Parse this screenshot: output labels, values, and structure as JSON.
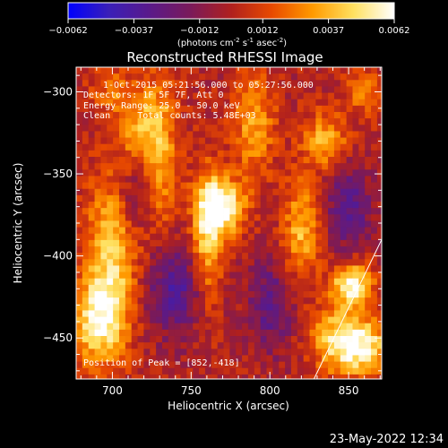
{
  "chart_data": {
    "type": "heatmap",
    "title": "Reconstructed RHESSI Image",
    "xlabel": "Heliocentric X (arcsec)",
    "ylabel": "Heliocentric Y (arcsec)",
    "xlim": [
      677,
      871
    ],
    "ylim": [
      -475,
      -285
    ],
    "xticks": [
      "700",
      "750",
      "800",
      "850"
    ],
    "yticks": [
      "-300",
      "-350",
      "-400",
      "-450"
    ],
    "colorbar": {
      "range": [
        -0.0062,
        0.0062
      ],
      "ticks": [
        "-0.0062",
        "-0.0037",
        "-0.0012",
        "0.0012",
        "0.0037",
        "0.0062"
      ],
      "label_main": "(photons cm",
      "label_sup1": "-2",
      "label_mid": " s",
      "label_sup2": "-1",
      "label_end": " asec",
      "label_sup3": "-2",
      "label_close": ")",
      "colors": [
        "#0000ff",
        "#3a1fb8",
        "#5a1a8a",
        "#7a1a5a",
        "#b0201e",
        "#e84a00",
        "#ff9a00",
        "#ffe060",
        "#ffffff"
      ]
    },
    "annotations": {
      "time": "1-Oct-2015 05:21:56.000 to 05:27:56.000",
      "detectors": "Detectors: 1F 5F 7F, Att 0",
      "energy": "Energy Range: 25.0 - 50.0 keV",
      "clean": "Clean     Total counts: 5.48E+03",
      "peak": "Position of Peak = [852,-418]"
    },
    "peak": [
      852,
      -418
    ],
    "limb_line": [
      [
        828,
        -475
      ],
      [
        871,
        -390
      ]
    ],
    "features": [
      {
        "x": 770,
        "y": -370,
        "peak": 1.0,
        "sx": 10,
        "sy": 12
      },
      {
        "x": 760,
        "y": -390,
        "peak": 0.7,
        "sx": 7,
        "sy": 30
      },
      {
        "x": 790,
        "y": -320,
        "peak": 0.55,
        "sx": 9,
        "sy": 22
      },
      {
        "x": 730,
        "y": -335,
        "peak": 0.6,
        "sx": 8,
        "sy": 35
      },
      {
        "x": 700,
        "y": -400,
        "peak": 0.7,
        "sx": 12,
        "sy": 35
      },
      {
        "x": 690,
        "y": -440,
        "peak": 0.75,
        "sx": 12,
        "sy": 18
      },
      {
        "x": 715,
        "y": -320,
        "peak": 0.45,
        "sx": 8,
        "sy": 15
      },
      {
        "x": 820,
        "y": -385,
        "peak": 0.6,
        "sx": 8,
        "sy": 22
      },
      {
        "x": 835,
        "y": -330,
        "peak": 0.6,
        "sx": 10,
        "sy": 12
      },
      {
        "x": 852,
        "y": -418,
        "peak": 1.0,
        "sx": 9,
        "sy": 9
      },
      {
        "x": 858,
        "y": -455,
        "peak": 0.95,
        "sx": 12,
        "sy": 12
      },
      {
        "x": 840,
        "y": -450,
        "peak": 0.55,
        "sx": 10,
        "sy": 14
      },
      {
        "x": 860,
        "y": -300,
        "peak": 0.4,
        "sx": 8,
        "sy": 10
      },
      {
        "x": 700,
        "y": -300,
        "peak": 0.35,
        "sx": 10,
        "sy": 10
      }
    ],
    "troughs": [
      {
        "x": 740,
        "y": -420,
        "depth": 0.55,
        "sx": 15,
        "sy": 20
      },
      {
        "x": 800,
        "y": -430,
        "depth": 0.45,
        "sx": 10,
        "sy": 20
      },
      {
        "x": 850,
        "y": -370,
        "depth": 0.5,
        "sx": 10,
        "sy": 18
      },
      {
        "x": 715,
        "y": -365,
        "depth": 0.4,
        "sx": 8,
        "sy": 15
      }
    ]
  },
  "footer_timestamp": "23-May-2022 12:34"
}
